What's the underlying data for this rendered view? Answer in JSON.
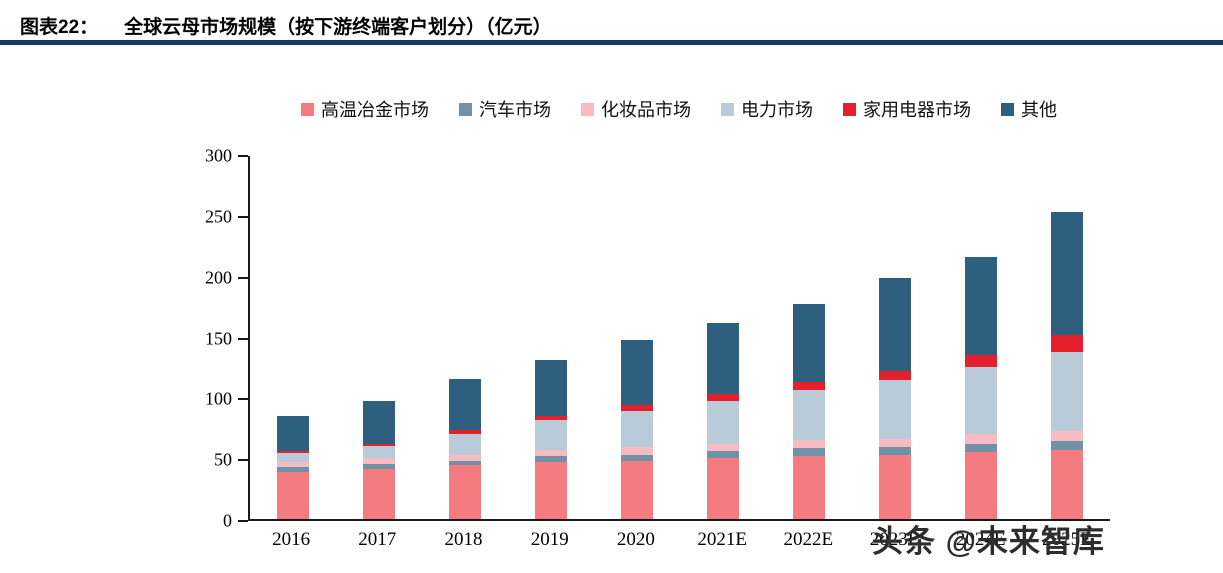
{
  "header": {
    "fig_label": "图表22：",
    "title": "全球云母市场规模（按下游终端客户划分）（亿元）",
    "rule_color": "#17375E"
  },
  "watermark": "头条 @未来智库",
  "chart_data": {
    "type": "bar",
    "stacked": true,
    "title": "全球云母市场规模（按下游终端客户划分）（亿元）",
    "xlabel": "",
    "ylabel": "",
    "ylim": [
      0,
      300
    ],
    "yticks": [
      0,
      50,
      100,
      150,
      200,
      250,
      300
    ],
    "grid": false,
    "legend_position": "top",
    "categories": [
      "2016",
      "2017",
      "2018",
      "2019",
      "2020",
      "2021E",
      "2022E",
      "2023E",
      "2024E",
      "2025E"
    ],
    "series": [
      {
        "name": "高温冶金市场",
        "color": "#F47C80",
        "values": [
          39,
          41,
          44,
          47,
          48,
          50,
          52,
          53,
          55,
          57
        ]
      },
      {
        "name": "汽车市场",
        "color": "#7191A6",
        "values": [
          4,
          4,
          4,
          5,
          5,
          6,
          6,
          6,
          7,
          7
        ]
      },
      {
        "name": "化妆品市场",
        "color": "#F6BCC1",
        "values": [
          4,
          5,
          5,
          5,
          6,
          6,
          7,
          7,
          8,
          8
        ]
      },
      {
        "name": "电力市场",
        "color": "#B9CBD9",
        "values": [
          7,
          10,
          17,
          24,
          30,
          35,
          41,
          48,
          55,
          65
        ]
      },
      {
        "name": "家用电器市场",
        "color": "#E4202C",
        "values": [
          2,
          2,
          3,
          4,
          5,
          6,
          7,
          8,
          10,
          14
        ]
      },
      {
        "name": "其他",
        "color": "#2F5F7E",
        "values": [
          29,
          35,
          42,
          46,
          53,
          58,
          64,
          76,
          80,
          101
        ]
      }
    ]
  }
}
